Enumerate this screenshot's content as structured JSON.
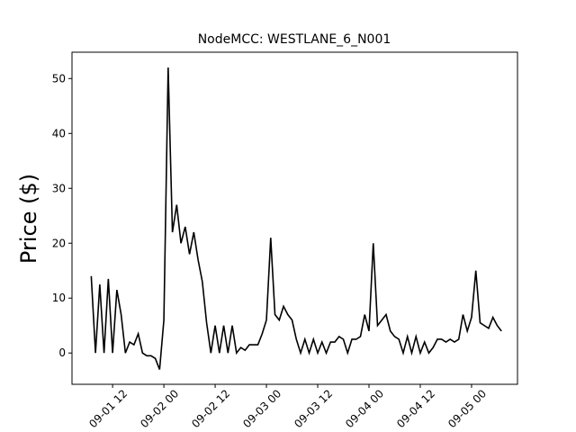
{
  "chart_data": {
    "type": "line",
    "title": "NodeMCC: WESTLANE_6_N001",
    "y_label": "Price ($)",
    "x": [
      "09-01 07",
      "09-01 08",
      "09-01 09",
      "09-01 10",
      "09-01 11",
      "09-01 12",
      "09-01 13",
      "09-01 14",
      "09-01 15",
      "09-01 16",
      "09-01 17",
      "09-01 18",
      "09-01 19",
      "09-01 20",
      "09-01 21",
      "09-01 22",
      "09-01 23",
      "09-02 00",
      "09-02 01",
      "09-02 02",
      "09-02 03",
      "09-02 04",
      "09-02 05",
      "09-02 06",
      "09-02 07",
      "09-02 08",
      "09-02 09",
      "09-02 10",
      "09-02 11",
      "09-02 12",
      "09-02 13",
      "09-02 14",
      "09-02 15",
      "09-02 16",
      "09-02 17",
      "09-02 18",
      "09-02 19",
      "09-02 20",
      "09-02 21",
      "09-02 22",
      "09-02 23",
      "09-03 00",
      "09-03 01",
      "09-03 02",
      "09-03 03",
      "09-03 04",
      "09-03 05",
      "09-03 06",
      "09-03 07",
      "09-03 08",
      "09-03 09",
      "09-03 10",
      "09-03 11",
      "09-03 12",
      "09-03 13",
      "09-03 14",
      "09-03 15",
      "09-03 16",
      "09-03 17",
      "09-03 18",
      "09-03 19",
      "09-03 20",
      "09-03 21",
      "09-03 22",
      "09-03 23",
      "09-04 00",
      "09-04 01",
      "09-04 02",
      "09-04 03",
      "09-04 04",
      "09-04 05",
      "09-04 06",
      "09-04 07",
      "09-04 08",
      "09-04 09",
      "09-04 10",
      "09-04 11",
      "09-04 12",
      "09-04 13",
      "09-04 14",
      "09-04 15",
      "09-04 16",
      "09-04 17",
      "09-04 18",
      "09-04 19",
      "09-04 20",
      "09-04 21",
      "09-04 22",
      "09-04 23",
      "09-05 00",
      "09-05 01",
      "09-05 02",
      "09-05 03",
      "09-05 04",
      "09-05 05",
      "09-05 06",
      "09-05 07"
    ],
    "series": [
      {
        "color": "#000000",
        "values": [
          14,
          0,
          12.5,
          0,
          13.5,
          0,
          11.5,
          7,
          0,
          2,
          1.5,
          3.5,
          0,
          -0.5,
          -0.5,
          -1,
          -3,
          6,
          52,
          22,
          27,
          20,
          23,
          18,
          22,
          17,
          13,
          5.5,
          0,
          5,
          0,
          5,
          0,
          5,
          0,
          1,
          0.5,
          1.5,
          1.5,
          1.5,
          3.5,
          6,
          21,
          7,
          6,
          8.5,
          7,
          6,
          2.5,
          0,
          2.5,
          0,
          2.5,
          0,
          2,
          0,
          2,
          2,
          3,
          2.5,
          0,
          2.5,
          2.5,
          3,
          7,
          4,
          20,
          5,
          6,
          7,
          4,
          3,
          2.5,
          0,
          3,
          0,
          3,
          0,
          2,
          0,
          1,
          2.5,
          2.5,
          2,
          2.5,
          2,
          2.5,
          7,
          4,
          6.5,
          15,
          5.5,
          5,
          4.5,
          6.5,
          5,
          4
        ]
      }
    ],
    "xlim": [
      "09-01 02:30",
      "09-05 10:45"
    ],
    "xticks": [
      "09-01 12",
      "09-02 00",
      "09-02 12",
      "09-03 00",
      "09-03 12",
      "09-04 00",
      "09-04 12",
      "09-05 00"
    ],
    "ylim": [
      -5.7,
      54.8
    ],
    "yticks": [
      0,
      10,
      20,
      30,
      40,
      50
    ]
  }
}
